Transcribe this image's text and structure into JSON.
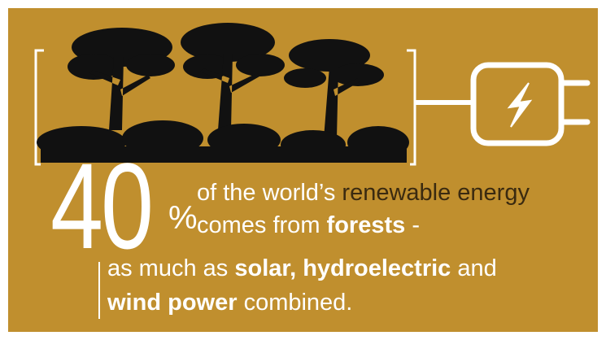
{
  "stat": {
    "number": "40",
    "unit": "%"
  },
  "lines": [
    {
      "start": "of the world’s",
      "highlight": "renewable energy"
    },
    {
      "start": "comes from",
      "bold": "forests",
      "end": "-"
    },
    {
      "start": "as much as",
      "bold": "solar, hydroelectric",
      "end": "and"
    },
    {
      "bold": "wind power",
      "end": "combined."
    }
  ]
}
